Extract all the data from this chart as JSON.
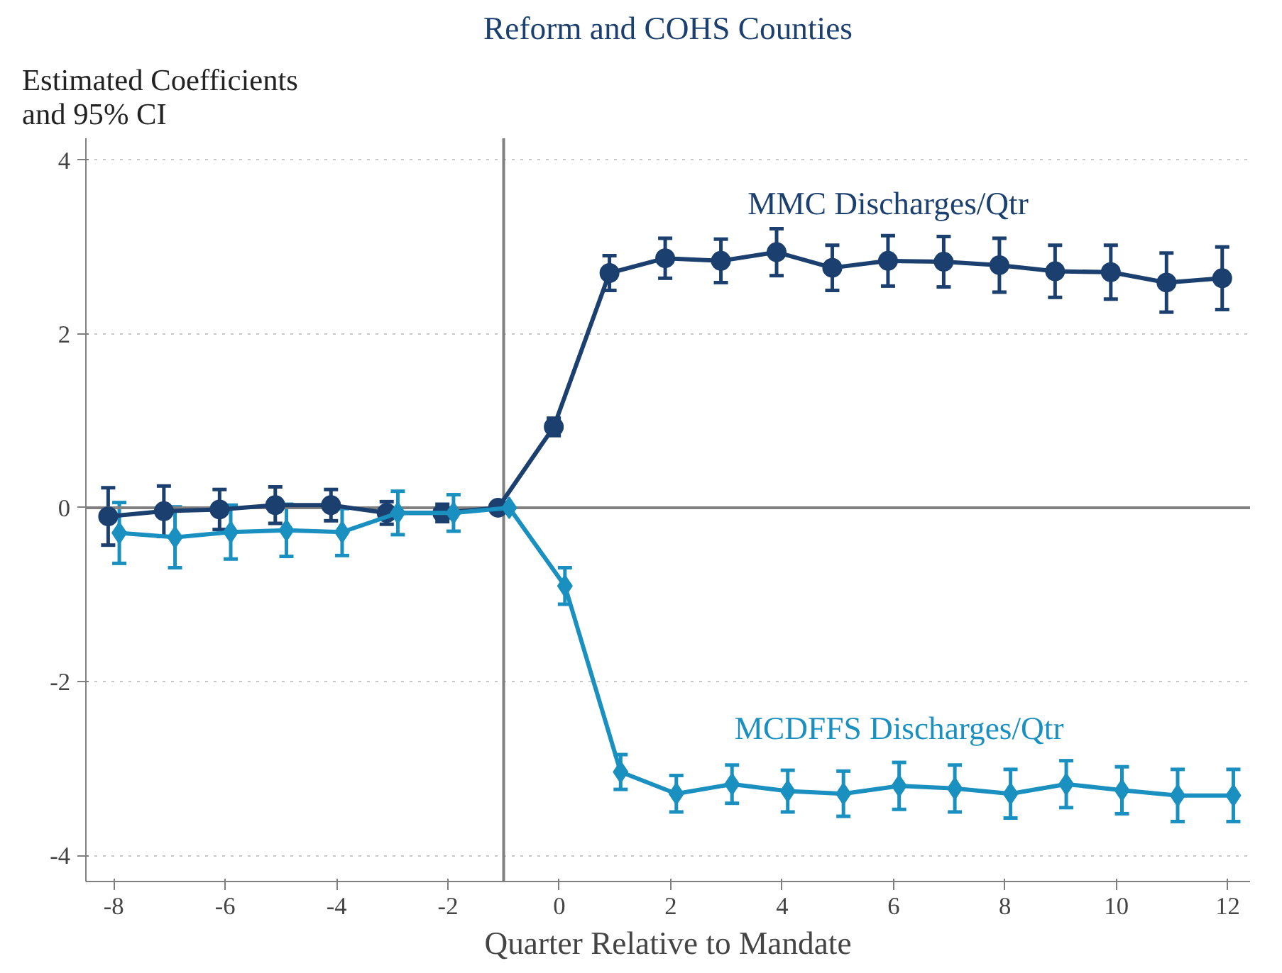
{
  "chart_data": {
    "type": "line",
    "title": "Reform and COHS Counties",
    "xlabel": "Quarter Relative to Mandate",
    "ylabel": "Estimated Coefficients and 95% CI",
    "xlim": [
      -8.5,
      12.4
    ],
    "ylim": [
      -4.3,
      4.25
    ],
    "xticks": [
      -8,
      -6,
      -4,
      -2,
      0,
      2,
      4,
      6,
      8,
      10,
      12
    ],
    "yticks": [
      -4,
      -2,
      0,
      2,
      4
    ],
    "grid": "y",
    "line_style": "solid",
    "ref_lines": [
      {
        "axis": "x",
        "value": -1,
        "color": "#808080"
      },
      {
        "axis": "y",
        "value": 0,
        "color": "#808080"
      }
    ],
    "series": [
      {
        "name": "MMC Discharges/Qtr",
        "color": "#1b3f6e",
        "marker": "circle",
        "x": [
          -8.1,
          -7.1,
          -6.1,
          -5.1,
          -4.1,
          -3.1,
          -2.1,
          -1.1,
          -0.1,
          0.9,
          1.9,
          2.9,
          3.9,
          4.9,
          5.9,
          6.9,
          7.9,
          8.9,
          9.9,
          10.9,
          11.9
        ],
        "values": [
          -0.1,
          -0.04,
          -0.02,
          0.03,
          0.03,
          -0.06,
          -0.06,
          0,
          0.93,
          2.7,
          2.87,
          2.84,
          2.94,
          2.76,
          2.84,
          2.83,
          2.79,
          2.72,
          2.71,
          2.59,
          2.64
        ],
        "errors": [
          0.33,
          0.29,
          0.23,
          0.21,
          0.18,
          0.13,
          0.1,
          null,
          0.1,
          0.2,
          0.23,
          0.25,
          0.27,
          0.26,
          0.29,
          0.29,
          0.31,
          0.3,
          0.31,
          0.34,
          0.36
        ]
      },
      {
        "name": "MCDFFS Discharges/Qtr",
        "color": "#1a90c0",
        "marker": "diamond",
        "x": [
          -7.9,
          -6.9,
          -5.9,
          -4.9,
          -3.9,
          -2.9,
          -1.9,
          -0.9,
          0.1,
          1.1,
          2.1,
          3.1,
          4.1,
          5.1,
          6.1,
          7.1,
          8.1,
          9.1,
          10.1,
          11.1,
          12.1
        ],
        "values": [
          -0.29,
          -0.34,
          -0.28,
          -0.26,
          -0.28,
          -0.06,
          -0.06,
          0,
          -0.9,
          -3.04,
          -3.29,
          -3.18,
          -3.26,
          -3.29,
          -3.2,
          -3.23,
          -3.29,
          -3.18,
          -3.25,
          -3.31,
          -3.31
        ],
        "errors": [
          0.35,
          0.35,
          0.31,
          0.3,
          0.27,
          0.25,
          0.21,
          null,
          0.21,
          0.2,
          0.21,
          0.22,
          0.24,
          0.26,
          0.27,
          0.27,
          0.28,
          0.27,
          0.27,
          0.3,
          0.3
        ]
      }
    ]
  }
}
